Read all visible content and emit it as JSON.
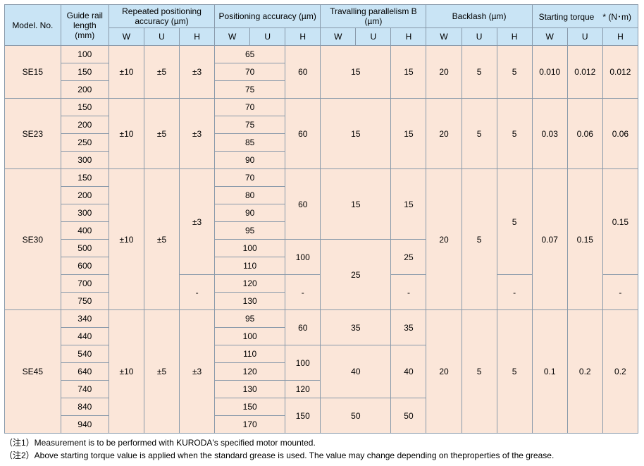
{
  "headers": {
    "model": "Model. No.",
    "rail": "Guide rail length (mm)",
    "rep": "Repeated positioning accuracy (µm)",
    "pos": "Positioning accuracy (µm)",
    "trav": "Travalling parallelism B (µm)",
    "back": "Backlash (µm)",
    "torque": "Starting torque　* (N･m)",
    "W": "W",
    "U": "U",
    "H": "H"
  },
  "se15": {
    "name": "SE15",
    "rails": [
      "100",
      "150",
      "200"
    ],
    "rep": {
      "W": "±10",
      "U": "±5",
      "H": "±3"
    },
    "pos": {
      "WU": [
        "65",
        "70",
        "75"
      ],
      "H": "60"
    },
    "trav": {
      "WU": "15",
      "H": "15"
    },
    "back": {
      "W": "20",
      "U": "5",
      "H": "5"
    },
    "tor": {
      "W": "0.010",
      "U": "0.012",
      "H": "0.012"
    }
  },
  "se23": {
    "name": "SE23",
    "rails": [
      "150",
      "200",
      "250",
      "300"
    ],
    "rep": {
      "W": "±10",
      "U": "±5",
      "H": "±3"
    },
    "pos": {
      "WU": [
        "70",
        "75",
        "85",
        "90"
      ],
      "H": "60"
    },
    "trav": {
      "WU": "15",
      "H": "15"
    },
    "back": {
      "W": "20",
      "U": "5",
      "H": "5"
    },
    "tor": {
      "W": "0.03",
      "U": "0.06",
      "H": "0.06"
    }
  },
  "se30": {
    "name": "SE30",
    "rails": [
      "150",
      "200",
      "300",
      "400",
      "500",
      "600",
      "700",
      "750"
    ],
    "rep": {
      "W": "±10",
      "U": "±5",
      "H1": "±3",
      "H2": "-"
    },
    "pos": {
      "WU": [
        "70",
        "80",
        "90",
        "95",
        "100",
        "110",
        "120",
        "130"
      ],
      "H1": "60",
      "H2": "100",
      "H3": "-"
    },
    "trav": {
      "WU1": "15",
      "WU2": "25",
      "H1": "15",
      "H2": "25",
      "H3": "-"
    },
    "back": {
      "W": "20",
      "U": "5",
      "H1": "5",
      "H2": "-"
    },
    "tor": {
      "W": "0.07",
      "U": "0.15",
      "H1": "0.15",
      "H2": "-"
    }
  },
  "se45": {
    "name": "SE45",
    "rails": [
      "340",
      "440",
      "540",
      "640",
      "740",
      "840",
      "940"
    ],
    "rep": {
      "W": "±10",
      "U": "±5",
      "H": "±3"
    },
    "pos": {
      "WU": [
        "95",
        "100",
        "110",
        "120",
        "130",
        "150",
        "170"
      ],
      "H1": "60",
      "H2": "100",
      "H3": "120",
      "H4": "150"
    },
    "trav": {
      "WU1": "35",
      "WU2": "40",
      "WU3": "50",
      "H1": "35",
      "H2": "40",
      "H3": "50"
    },
    "back": {
      "W": "20",
      "U": "5",
      "H": "5"
    },
    "tor": {
      "W": "0.1",
      "U": "0.2",
      "H": "0.2"
    }
  },
  "notes": {
    "n1": "（注1）Measurement is to be performed with KURODA's specified motor mounted.",
    "n2": "（注2）Above starting torque value is applied when the standard grease is used. The value may change depending on theproperties of the grease."
  }
}
